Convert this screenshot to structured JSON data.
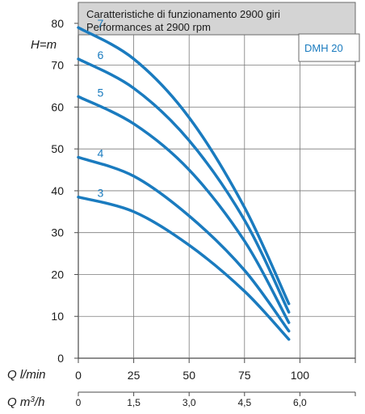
{
  "chart_data": {
    "type": "line",
    "title_line1": "Caratteristiche di funzionamento 2900 giri",
    "title_line2": "Performances at 2900 rpm",
    "model": "DMH 20",
    "ylabel": "H=m",
    "xlabel_primary": "Q l/min",
    "xlabel_secondary_prefix": "Q m",
    "xlabel_secondary_sup": "3",
    "xlabel_secondary_suffix": "/h",
    "xlim": [
      0,
      125
    ],
    "ylim": [
      0,
      85
    ],
    "grid": true,
    "y_ticks": [
      "0",
      "10",
      "20",
      "30",
      "40",
      "50",
      "60",
      "70",
      "80"
    ],
    "x_ticks": [
      "0",
      "25",
      "50",
      "75",
      "100"
    ],
    "x_ticks_secondary": [
      "0",
      "1,5",
      "3,0",
      "4,5",
      "6,0"
    ],
    "curve_color": "#1a7bbf",
    "series": [
      {
        "name": "3",
        "x": [
          0,
          25,
          50,
          75,
          95
        ],
        "y": [
          38.5,
          35,
          27,
          16,
          4.5
        ]
      },
      {
        "name": "4",
        "x": [
          0,
          25,
          50,
          75,
          95
        ],
        "y": [
          48,
          43.5,
          34,
          21,
          6.5
        ]
      },
      {
        "name": "5",
        "x": [
          0,
          25,
          50,
          75,
          95
        ],
        "y": [
          62.5,
          56,
          45,
          28,
          8.5
        ]
      },
      {
        "name": "6",
        "x": [
          0,
          25,
          50,
          75,
          95
        ],
        "y": [
          71.5,
          64.5,
          52,
          33,
          11
        ]
      },
      {
        "name": "7",
        "x": [
          0,
          25,
          50,
          75,
          95
        ],
        "y": [
          79,
          71.5,
          57.5,
          36,
          13
        ]
      }
    ]
  }
}
